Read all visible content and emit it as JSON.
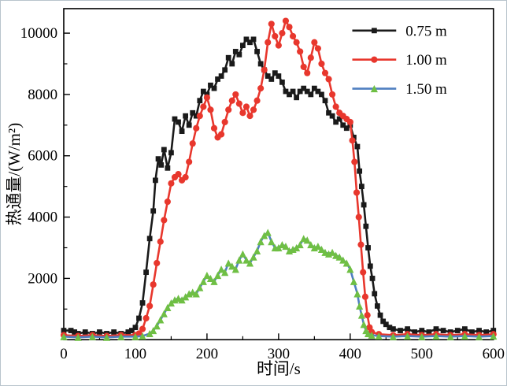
{
  "chart_data": {
    "type": "line",
    "title": "",
    "xlabel": "时间/s",
    "ylabel": "热通量/(W/m²)",
    "xlim": [
      0,
      600
    ],
    "ylim": [
      0,
      10800
    ],
    "x_ticks": [
      0,
      100,
      200,
      300,
      400,
      500,
      600
    ],
    "x_minor_step": 50,
    "y_ticks": [
      2000,
      4000,
      6000,
      8000,
      10000
    ],
    "y_minor_step": 1000,
    "grid": false,
    "legend_position": "top-right",
    "axis_color": "#000000",
    "series": [
      {
        "name": "0.75 m",
        "marker": "square",
        "line_color": "#1a1a1a",
        "marker_color": "#1a1a1a",
        "points": [
          [
            0,
            300
          ],
          [
            10,
            300
          ],
          [
            15,
            250
          ],
          [
            20,
            200
          ],
          [
            30,
            250
          ],
          [
            40,
            200
          ],
          [
            50,
            250
          ],
          [
            60,
            200
          ],
          [
            70,
            250
          ],
          [
            80,
            200
          ],
          [
            90,
            250
          ],
          [
            95,
            300
          ],
          [
            100,
            400
          ],
          [
            105,
            700
          ],
          [
            110,
            1200
          ],
          [
            115,
            2200
          ],
          [
            120,
            3300
          ],
          [
            125,
            4200
          ],
          [
            128,
            5200
          ],
          [
            132,
            5900
          ],
          [
            136,
            5700
          ],
          [
            140,
            6200
          ],
          [
            145,
            5600
          ],
          [
            150,
            6100
          ],
          [
            155,
            7200
          ],
          [
            160,
            7100
          ],
          [
            165,
            6800
          ],
          [
            170,
            7300
          ],
          [
            175,
            7000
          ],
          [
            180,
            7400
          ],
          [
            185,
            7300
          ],
          [
            190,
            7800
          ],
          [
            195,
            8100
          ],
          [
            200,
            8000
          ],
          [
            205,
            8300
          ],
          [
            210,
            8200
          ],
          [
            215,
            8500
          ],
          [
            220,
            8600
          ],
          [
            225,
            8800
          ],
          [
            230,
            9200
          ],
          [
            235,
            9000
          ],
          [
            240,
            9400
          ],
          [
            245,
            9300
          ],
          [
            250,
            9600
          ],
          [
            255,
            9800
          ],
          [
            260,
            9700
          ],
          [
            265,
            9800
          ],
          [
            270,
            9400
          ],
          [
            275,
            9000
          ],
          [
            280,
            8800
          ],
          [
            285,
            8600
          ],
          [
            290,
            8500
          ],
          [
            295,
            8700
          ],
          [
            300,
            8600
          ],
          [
            305,
            8400
          ],
          [
            310,
            8100
          ],
          [
            315,
            8000
          ],
          [
            320,
            8100
          ],
          [
            325,
            7900
          ],
          [
            330,
            8100
          ],
          [
            335,
            8200
          ],
          [
            340,
            8100
          ],
          [
            345,
            8000
          ],
          [
            350,
            8200
          ],
          [
            355,
            8100
          ],
          [
            360,
            8000
          ],
          [
            365,
            7800
          ],
          [
            370,
            7400
          ],
          [
            375,
            7300
          ],
          [
            380,
            7100
          ],
          [
            385,
            7200
          ],
          [
            390,
            7000
          ],
          [
            395,
            6900
          ],
          [
            400,
            7000
          ],
          [
            405,
            6600
          ],
          [
            410,
            6300
          ],
          [
            413,
            5500
          ],
          [
            416,
            5000
          ],
          [
            419,
            4400
          ],
          [
            422,
            3700
          ],
          [
            425,
            3000
          ],
          [
            428,
            2400
          ],
          [
            431,
            2000
          ],
          [
            434,
            1500
          ],
          [
            438,
            1100
          ],
          [
            442,
            800
          ],
          [
            446,
            600
          ],
          [
            450,
            500
          ],
          [
            455,
            400
          ],
          [
            460,
            350
          ],
          [
            470,
            300
          ],
          [
            480,
            350
          ],
          [
            490,
            250
          ],
          [
            500,
            300
          ],
          [
            510,
            250
          ],
          [
            520,
            350
          ],
          [
            530,
            300
          ],
          [
            540,
            250
          ],
          [
            550,
            300
          ],
          [
            560,
            350
          ],
          [
            570,
            250
          ],
          [
            580,
            300
          ],
          [
            590,
            250
          ],
          [
            600,
            300
          ]
        ]
      },
      {
        "name": "1.00 m",
        "marker": "circle",
        "line_color": "#e8372d",
        "marker_color": "#e8372d",
        "points": [
          [
            0,
            150
          ],
          [
            20,
            120
          ],
          [
            40,
            150
          ],
          [
            60,
            120
          ],
          [
            80,
            150
          ],
          [
            100,
            150
          ],
          [
            105,
            200
          ],
          [
            110,
            350
          ],
          [
            115,
            700
          ],
          [
            120,
            1100
          ],
          [
            125,
            1800
          ],
          [
            130,
            2500
          ],
          [
            135,
            3200
          ],
          [
            140,
            3900
          ],
          [
            145,
            4500
          ],
          [
            150,
            5100
          ],
          [
            155,
            5300
          ],
          [
            160,
            5400
          ],
          [
            165,
            5200
          ],
          [
            170,
            5300
          ],
          [
            175,
            5800
          ],
          [
            180,
            6400
          ],
          [
            185,
            6900
          ],
          [
            190,
            7300
          ],
          [
            195,
            7600
          ],
          [
            200,
            7900
          ],
          [
            205,
            7500
          ],
          [
            210,
            6900
          ],
          [
            215,
            6600
          ],
          [
            220,
            6700
          ],
          [
            225,
            7100
          ],
          [
            230,
            7500
          ],
          [
            235,
            7800
          ],
          [
            240,
            8000
          ],
          [
            245,
            7700
          ],
          [
            250,
            7400
          ],
          [
            255,
            7600
          ],
          [
            260,
            7300
          ],
          [
            265,
            7500
          ],
          [
            270,
            7800
          ],
          [
            275,
            8200
          ],
          [
            280,
            8800
          ],
          [
            285,
            9700
          ],
          [
            290,
            10300
          ],
          [
            295,
            9900
          ],
          [
            300,
            9600
          ],
          [
            305,
            10000
          ],
          [
            310,
            10400
          ],
          [
            315,
            10200
          ],
          [
            320,
            9900
          ],
          [
            325,
            9700
          ],
          [
            330,
            9400
          ],
          [
            335,
            8900
          ],
          [
            340,
            8700
          ],
          [
            345,
            9200
          ],
          [
            350,
            9700
          ],
          [
            355,
            9500
          ],
          [
            360,
            9000
          ],
          [
            365,
            8700
          ],
          [
            370,
            8500
          ],
          [
            375,
            8000
          ],
          [
            380,
            7600
          ],
          [
            385,
            7400
          ],
          [
            390,
            7300
          ],
          [
            395,
            7200
          ],
          [
            400,
            7100
          ],
          [
            403,
            6500
          ],
          [
            406,
            5800
          ],
          [
            409,
            4800
          ],
          [
            412,
            4000
          ],
          [
            415,
            3100
          ],
          [
            418,
            2200
          ],
          [
            421,
            1400
          ],
          [
            424,
            800
          ],
          [
            427,
            400
          ],
          [
            430,
            250
          ],
          [
            440,
            180
          ],
          [
            460,
            150
          ],
          [
            480,
            180
          ],
          [
            500,
            150
          ],
          [
            520,
            180
          ],
          [
            540,
            150
          ],
          [
            560,
            180
          ],
          [
            580,
            150
          ],
          [
            600,
            180
          ]
        ]
      },
      {
        "name": "1.50 m",
        "marker": "triangle",
        "line_color": "#4f7fc1",
        "marker_color": "#6fbf44",
        "points": [
          [
            0,
            100
          ],
          [
            20,
            80
          ],
          [
            40,
            100
          ],
          [
            60,
            80
          ],
          [
            80,
            100
          ],
          [
            100,
            100
          ],
          [
            110,
            120
          ],
          [
            120,
            200
          ],
          [
            125,
            300
          ],
          [
            130,
            450
          ],
          [
            135,
            650
          ],
          [
            140,
            850
          ],
          [
            145,
            1050
          ],
          [
            150,
            1200
          ],
          [
            155,
            1300
          ],
          [
            160,
            1350
          ],
          [
            165,
            1300
          ],
          [
            170,
            1400
          ],
          [
            175,
            1500
          ],
          [
            180,
            1550
          ],
          [
            185,
            1500
          ],
          [
            190,
            1700
          ],
          [
            195,
            1900
          ],
          [
            200,
            2100
          ],
          [
            205,
            2000
          ],
          [
            210,
            1900
          ],
          [
            215,
            2100
          ],
          [
            220,
            2300
          ],
          [
            225,
            2200
          ],
          [
            230,
            2500
          ],
          [
            235,
            2400
          ],
          [
            240,
            2300
          ],
          [
            245,
            2600
          ],
          [
            250,
            2800
          ],
          [
            255,
            2600
          ],
          [
            260,
            2500
          ],
          [
            265,
            2700
          ],
          [
            270,
            2900
          ],
          [
            275,
            3200
          ],
          [
            280,
            3400
          ],
          [
            285,
            3500
          ],
          [
            290,
            3200
          ],
          [
            295,
            3000
          ],
          [
            300,
            3000
          ],
          [
            305,
            3100
          ],
          [
            310,
            3050
          ],
          [
            315,
            2900
          ],
          [
            320,
            2950
          ],
          [
            325,
            3000
          ],
          [
            330,
            3100
          ],
          [
            335,
            3300
          ],
          [
            340,
            3250
          ],
          [
            345,
            3100
          ],
          [
            350,
            3000
          ],
          [
            355,
            3050
          ],
          [
            360,
            2950
          ],
          [
            365,
            2850
          ],
          [
            370,
            2800
          ],
          [
            375,
            2850
          ],
          [
            380,
            2750
          ],
          [
            385,
            2700
          ],
          [
            390,
            2600
          ],
          [
            395,
            2500
          ],
          [
            400,
            2300
          ],
          [
            405,
            1900
          ],
          [
            410,
            1500
          ],
          [
            413,
            1100
          ],
          [
            416,
            800
          ],
          [
            419,
            500
          ],
          [
            422,
            300
          ],
          [
            425,
            200
          ],
          [
            430,
            150
          ],
          [
            440,
            120
          ],
          [
            460,
            100
          ],
          [
            480,
            120
          ],
          [
            500,
            100
          ],
          [
            520,
            120
          ],
          [
            540,
            100
          ],
          [
            560,
            120
          ],
          [
            580,
            100
          ],
          [
            600,
            120
          ]
        ]
      }
    ]
  }
}
